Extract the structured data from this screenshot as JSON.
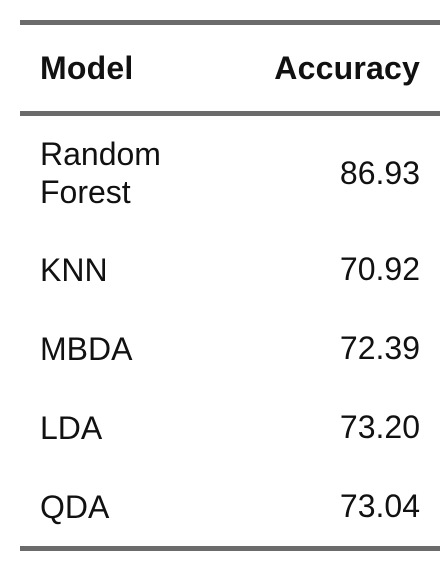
{
  "table": {
    "headers": {
      "model": "Model",
      "accuracy": "Accuracy"
    },
    "rows": [
      {
        "model": "Random\nForest",
        "accuracy": "86.93"
      },
      {
        "model": "KNN",
        "accuracy": "70.92"
      },
      {
        "model": "MBDA",
        "accuracy": "72.39"
      },
      {
        "model": "LDA",
        "accuracy": "73.20"
      },
      {
        "model": "QDA",
        "accuracy": "73.04"
      }
    ]
  }
}
